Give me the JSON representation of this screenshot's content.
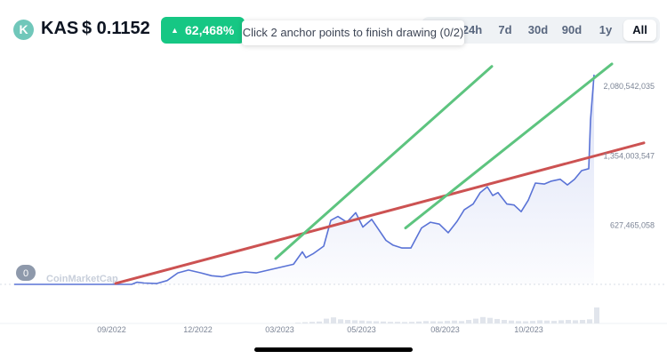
{
  "header": {
    "logo_icon": "kaspa-logo-icon",
    "logo_glyph": "K",
    "symbol": "KAS",
    "price": "$ 0.1152",
    "change_icon": "triangle-up-icon",
    "change_glyph": "▲",
    "change": "62,468%",
    "tooltip": "Click 2 anchor points to finish drawing (0/2)",
    "ranges": [
      "24h",
      "7d",
      "30d",
      "90d",
      "1y",
      "All"
    ],
    "active_range": "All"
  },
  "chart_data": {
    "type": "area",
    "ylim": [
      0,
      2194000000
    ],
    "y_ticks": [
      {
        "value": 627465058,
        "label": "627,465,058"
      },
      {
        "value": 1354003547,
        "label": "1,354,003,547"
      },
      {
        "value": 2080542035,
        "label": "2,080,542,035"
      }
    ],
    "x_ticks": [
      {
        "x": 107.5,
        "label": "09/2022"
      },
      {
        "x": 204.5,
        "label": "12/2022"
      },
      {
        "x": 296.5,
        "label": "03/2023"
      },
      {
        "x": 388.5,
        "label": "05/2023"
      },
      {
        "x": 482.5,
        "label": "08/2023"
      },
      {
        "x": 576.5,
        "label": "10/2023"
      }
    ],
    "x_range": [
      0,
      620
    ],
    "baseline_label": "0",
    "watermark": "CoinMarketCap",
    "series": [
      {
        "color": "#5a73d6",
        "x": [
          0,
          106,
          112,
          120,
          134,
          146,
          158,
          170,
          184,
          196,
          208,
          220,
          234,
          246,
          260,
          274,
          288,
          298,
          302,
          310,
          322,
          330,
          338,
          348,
          358,
          366,
          376,
          384,
          392,
          400,
          410,
          420,
          432,
          442,
          452,
          462,
          472,
          480,
          490,
          498,
          506,
          512,
          518,
          528,
          536,
          544,
          552,
          560,
          570,
          578,
          588,
          596,
          604,
          612,
          620,
          622,
          626
        ],
        "y": [
          0,
          0,
          22000000,
          14000000,
          8000000,
          40000000,
          120000000,
          150000000,
          120000000,
          90000000,
          80000000,
          110000000,
          130000000,
          120000000,
          150000000,
          180000000,
          210000000,
          340000000,
          280000000,
          320000000,
          400000000,
          670000000,
          710000000,
          650000000,
          750000000,
          600000000,
          680000000,
          570000000,
          460000000,
          410000000,
          380000000,
          380000000,
          590000000,
          650000000,
          630000000,
          540000000,
          660000000,
          780000000,
          840000000,
          960000000,
          1020000000,
          930000000,
          960000000,
          840000000,
          830000000,
          760000000,
          880000000,
          1060000000,
          1050000000,
          1080000000,
          1100000000,
          1040000000,
          1100000000,
          1190000000,
          1210000000,
          1720000000,
          2194000000
        ]
      }
    ],
    "trend_lines": [
      {
        "color": "#cc5252",
        "from": [
          106,
          10000000
        ],
        "to": [
          704,
          1480000000
        ]
      },
      {
        "color": "#5dc47f",
        "from": [
          286,
          270000000
        ],
        "to": [
          533,
          2280000000
        ]
      },
      {
        "color": "#5dc47f",
        "from": [
          432,
          590000000
        ],
        "to": [
          668,
          2306000000
        ]
      }
    ],
    "volume": [
      {
        "x": 284,
        "v": 0.05
      },
      {
        "x": 292,
        "v": 0.08
      },
      {
        "x": 300,
        "v": 0.1
      },
      {
        "x": 308,
        "v": 0.12
      },
      {
        "x": 316,
        "v": 0.3
      },
      {
        "x": 324,
        "v": 0.38
      },
      {
        "x": 332,
        "v": 0.26
      },
      {
        "x": 340,
        "v": 0.22
      },
      {
        "x": 348,
        "v": 0.2
      },
      {
        "x": 356,
        "v": 0.18
      },
      {
        "x": 364,
        "v": 0.15
      },
      {
        "x": 372,
        "v": 0.14
      },
      {
        "x": 380,
        "v": 0.12
      },
      {
        "x": 388,
        "v": 0.1
      },
      {
        "x": 396,
        "v": 0.1
      },
      {
        "x": 404,
        "v": 0.09
      },
      {
        "x": 412,
        "v": 0.1
      },
      {
        "x": 420,
        "v": 0.12
      },
      {
        "x": 428,
        "v": 0.15
      },
      {
        "x": 436,
        "v": 0.14
      },
      {
        "x": 444,
        "v": 0.13
      },
      {
        "x": 452,
        "v": 0.16
      },
      {
        "x": 460,
        "v": 0.18
      },
      {
        "x": 468,
        "v": 0.15
      },
      {
        "x": 476,
        "v": 0.22
      },
      {
        "x": 484,
        "v": 0.3
      },
      {
        "x": 492,
        "v": 0.4
      },
      {
        "x": 500,
        "v": 0.35
      },
      {
        "x": 508,
        "v": 0.28
      },
      {
        "x": 516,
        "v": 0.22
      },
      {
        "x": 524,
        "v": 0.18
      },
      {
        "x": 532,
        "v": 0.15
      },
      {
        "x": 540,
        "v": 0.14
      },
      {
        "x": 548,
        "v": 0.16
      },
      {
        "x": 556,
        "v": 0.2
      },
      {
        "x": 564,
        "v": 0.18
      },
      {
        "x": 572,
        "v": 0.16
      },
      {
        "x": 580,
        "v": 0.2
      },
      {
        "x": 588,
        "v": 0.22
      },
      {
        "x": 596,
        "v": 0.2
      },
      {
        "x": 604,
        "v": 0.22
      },
      {
        "x": 612,
        "v": 0.26
      },
      {
        "x": 620,
        "v": 1.0
      }
    ]
  }
}
